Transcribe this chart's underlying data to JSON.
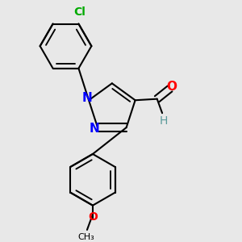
{
  "background_color": "#e8e8e8",
  "bond_color": "#000000",
  "bond_width": 1.5,
  "atom_colors": {
    "N": "#0000ff",
    "O": "#ff0000",
    "Cl": "#00aa00",
    "H": "#5a9a9a",
    "C": "#000000"
  },
  "font_size_atom": 10,
  "font_size_small": 9
}
